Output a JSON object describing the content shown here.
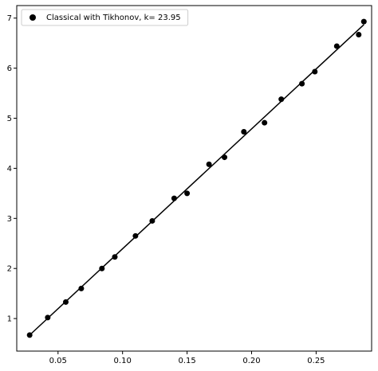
{
  "chart_data": {
    "type": "scatter",
    "title": "",
    "xlabel": "",
    "ylabel": "",
    "xlim": [
      0.018,
      0.293
    ],
    "ylim": [
      0.35,
      7.25
    ],
    "xticks": [
      0.05,
      0.1,
      0.15,
      0.2,
      0.25
    ],
    "xtick_labels": [
      "0.05",
      "0.10",
      "0.15",
      "0.20",
      "0.25"
    ],
    "yticks": [
      1,
      2,
      3,
      4,
      5,
      6,
      7
    ],
    "ytick_labels": [
      "1",
      "2",
      "3",
      "4",
      "5",
      "6",
      "7"
    ],
    "grid": false,
    "legend_position": "top-left",
    "legend": [
      "Classical with Tikhonov, k= 23.95"
    ],
    "series": [
      {
        "name": "Classical with Tikhonov, k= 23.95",
        "kind": "scatter",
        "color": "#000000",
        "x": [
          0.028,
          0.042,
          0.056,
          0.068,
          0.084,
          0.094,
          0.11,
          0.123,
          0.14,
          0.15,
          0.167,
          0.179,
          0.194,
          0.21,
          0.223,
          0.239,
          0.249,
          0.266,
          0.283,
          0.287
        ],
        "y": [
          0.67,
          1.02,
          1.33,
          1.6,
          2.0,
          2.23,
          2.65,
          2.95,
          3.4,
          3.5,
          4.08,
          4.22,
          4.73,
          4.91,
          5.38,
          5.69,
          5.93,
          6.44,
          6.67,
          6.93
        ]
      },
      {
        "kind": "line",
        "color": "#000000",
        "x": [
          0.028,
          0.287
        ],
        "y": [
          0.67,
          6.87
        ]
      }
    ]
  }
}
